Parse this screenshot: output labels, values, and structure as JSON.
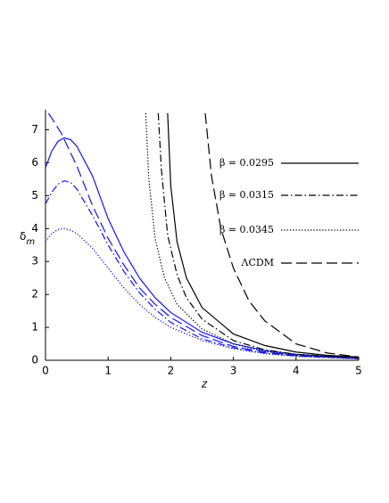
{
  "chart_data": {
    "type": "line",
    "x_label": "z",
    "y_label": {
      "symbol": "δ",
      "subscript": "m"
    },
    "xlim": [
      0,
      5
    ],
    "xticks": [
      0,
      1,
      2,
      3,
      4,
      5
    ],
    "ylim": [
      0,
      7.5
    ],
    "yticks": [
      0,
      1,
      2,
      3,
      4,
      5,
      6,
      7
    ],
    "grid": false,
    "legend_position": "right",
    "series": [
      {
        "color": "#1414ff",
        "dash": "solid",
        "x": [
          0,
          0.1,
          0.2,
          0.3,
          0.4,
          0.5,
          0.75,
          1,
          1.25,
          1.5,
          1.75,
          2,
          2.5,
          3,
          3.5,
          4,
          5
        ],
        "values": [
          5.85,
          6.35,
          6.65,
          6.75,
          6.7,
          6.5,
          5.6,
          4.3,
          3.3,
          2.5,
          1.9,
          1.45,
          0.85,
          0.5,
          0.3,
          0.18,
          0.07
        ]
      },
      {
        "color": "#1414ff",
        "dash": "dashdot",
        "x": [
          0,
          0.1,
          0.2,
          0.3,
          0.4,
          0.5,
          0.75,
          1,
          1.25,
          1.5,
          1.75,
          2,
          2.5,
          3,
          3.5,
          4,
          5
        ],
        "values": [
          4.75,
          5.1,
          5.35,
          5.45,
          5.4,
          5.2,
          4.4,
          3.5,
          2.7,
          2.05,
          1.55,
          1.15,
          0.65,
          0.38,
          0.22,
          0.13,
          0.05
        ]
      },
      {
        "color": "#1414ff",
        "dash": "dotted",
        "x": [
          0,
          0.1,
          0.2,
          0.3,
          0.4,
          0.5,
          0.75,
          1,
          1.25,
          1.5,
          1.75,
          2,
          2.5,
          3,
          3.5,
          4,
          5
        ],
        "values": [
          3.6,
          3.85,
          3.97,
          4.0,
          3.95,
          3.85,
          3.4,
          2.8,
          2.2,
          1.7,
          1.3,
          1.0,
          0.6,
          0.35,
          0.2,
          0.12,
          0.04
        ]
      },
      {
        "color": "#1414ff",
        "dash": "dashed",
        "x": [
          0.05,
          0.25,
          0.5,
          0.75,
          1,
          1.25,
          1.5,
          1.75,
          2,
          2.5,
          3,
          3.5,
          4,
          5
        ],
        "values": [
          7.5,
          6.9,
          5.9,
          4.7,
          3.7,
          2.9,
          2.2,
          1.7,
          1.3,
          0.75,
          0.42,
          0.25,
          0.15,
          0.06
        ]
      },
      {
        "name": "β = 0.0295",
        "color": "#000000",
        "dash": "solid",
        "x": [
          1.95,
          2.0,
          2.1,
          2.25,
          2.5,
          3,
          3.5,
          4,
          4.5,
          5
        ],
        "values": [
          7.5,
          5.3,
          3.6,
          2.5,
          1.6,
          0.8,
          0.45,
          0.25,
          0.15,
          0.1
        ]
      },
      {
        "name": "β = 0.0315",
        "color": "#000000",
        "dash": "dashdot",
        "x": [
          1.8,
          1.85,
          1.95,
          2.1,
          2.25,
          2.5,
          3,
          3.5,
          4,
          5
        ],
        "values": [
          7.5,
          5.8,
          3.8,
          2.6,
          1.9,
          1.25,
          0.6,
          0.32,
          0.18,
          0.08
        ]
      },
      {
        "name": "β = 0.0345",
        "color": "#000000",
        "dash": "dotted",
        "x": [
          1.6,
          1.65,
          1.75,
          1.9,
          2.1,
          2.5,
          3,
          3.5,
          4,
          5
        ],
        "values": [
          7.5,
          5.5,
          3.7,
          2.5,
          1.7,
          0.95,
          0.5,
          0.27,
          0.15,
          0.06
        ]
      },
      {
        "name": "ΛCDM",
        "color": "#000000",
        "dash": "dashed",
        "x": [
          2.55,
          2.65,
          2.8,
          3,
          3.25,
          3.5,
          4,
          4.5,
          5
        ],
        "values": [
          7.5,
          5.6,
          4.0,
          2.8,
          1.8,
          1.2,
          0.5,
          0.22,
          0.1
        ]
      }
    ]
  }
}
